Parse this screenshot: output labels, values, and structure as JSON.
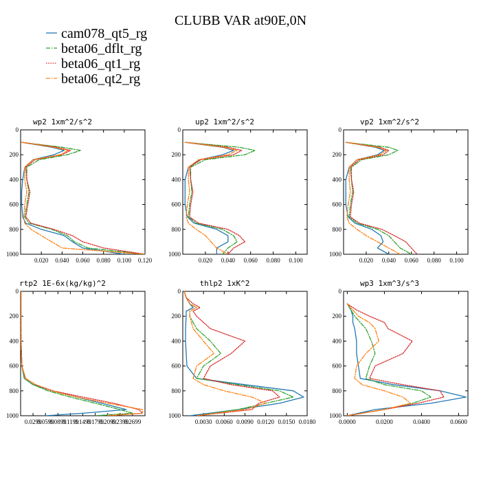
{
  "figure": {
    "title": "CLUBB VAR at90E,0N",
    "legend": [
      {
        "name": "cam078_qt5_rg",
        "color": "#1f77b4",
        "dash": "solid"
      },
      {
        "name": "beta06_dflt_rg",
        "color": "#2ca02c",
        "dash": "dashdot"
      },
      {
        "name": "beta06_qt1_rg",
        "color": "#d62728",
        "dash": "dotted"
      },
      {
        "name": "beta06_qt2_rg",
        "color": "#ff7f0e",
        "dash": "dashdot"
      }
    ]
  },
  "chart_data": [
    {
      "type": "line",
      "title": "wp2  1xm^2/s^2",
      "xlim": [
        0,
        0.12
      ],
      "ylim": [
        1000,
        0
      ],
      "y_inverted": true,
      "xticks": [
        0.02,
        0.04,
        0.06,
        0.08,
        0.1,
        0.12
      ],
      "xtick_labels": [
        "0.020",
        "0.040",
        "0.060",
        "0.080",
        "0.100",
        "0.120"
      ],
      "yticks": [
        0,
        200,
        400,
        600,
        800,
        1000
      ],
      "ytick_labels": [
        "0",
        "200",
        "400",
        "600",
        "800",
        "1000"
      ],
      "y": [
        100,
        140,
        165,
        200,
        240,
        300,
        400,
        500,
        600,
        700,
        750,
        800,
        850,
        900,
        950,
        1000
      ],
      "series": [
        {
          "name": "cam078_qt5_rg",
          "values": [
            0.001,
            0.03,
            0.042,
            0.032,
            0.012,
            0.004,
            0.002,
            0.001,
            0.001,
            0.002,
            0.005,
            0.02,
            0.042,
            0.05,
            0.06,
            0.1
          ]
        },
        {
          "name": "beta06_dflt_rg",
          "values": [
            0.001,
            0.04,
            0.058,
            0.045,
            0.018,
            0.006,
            0.006,
            0.008,
            0.006,
            0.004,
            0.008,
            0.03,
            0.045,
            0.052,
            0.065,
            0.12
          ]
        },
        {
          "name": "beta06_qt1_rg",
          "values": [
            0.001,
            0.035,
            0.048,
            0.04,
            0.014,
            0.005,
            0.006,
            0.009,
            0.007,
            0.005,
            0.01,
            0.032,
            0.05,
            0.06,
            0.08,
            0.12
          ]
        },
        {
          "name": "beta06_qt2_rg",
          "values": [
            0.001,
            0.032,
            0.046,
            0.038,
            0.012,
            0.004,
            0.004,
            0.006,
            0.004,
            0.003,
            0.004,
            0.01,
            0.02,
            0.03,
            0.04,
            0.12
          ]
        }
      ]
    },
    {
      "type": "line",
      "title": "up2  1xm^2/s^2",
      "xlim": [
        0,
        0.11
      ],
      "ylim": [
        1000,
        0
      ],
      "y_inverted": true,
      "xticks": [
        0.02,
        0.04,
        0.06,
        0.08,
        0.1
      ],
      "xtick_labels": [
        "0.020",
        "0.040",
        "0.060",
        "0.080",
        "0.100"
      ],
      "yticks": [
        0,
        200,
        400,
        600,
        800,
        1000
      ],
      "ytick_labels": [
        "0",
        "200",
        "400",
        "600",
        "800",
        "1000"
      ],
      "y": [
        100,
        140,
        165,
        200,
        240,
        300,
        400,
        500,
        600,
        700,
        750,
        800,
        850,
        900,
        950,
        1000
      ],
      "series": [
        {
          "name": "cam078_qt5_rg",
          "values": [
            0.002,
            0.035,
            0.045,
            0.035,
            0.015,
            0.005,
            0.002,
            0.002,
            0.002,
            0.004,
            0.01,
            0.03,
            0.04,
            0.04,
            0.03,
            0.03
          ]
        },
        {
          "name": "beta06_dflt_rg",
          "values": [
            0.002,
            0.05,
            0.064,
            0.055,
            0.02,
            0.007,
            0.007,
            0.008,
            0.006,
            0.005,
            0.012,
            0.035,
            0.045,
            0.048,
            0.04,
            0.035
          ]
        },
        {
          "name": "beta06_qt1_rg",
          "values": [
            0.002,
            0.04,
            0.052,
            0.045,
            0.016,
            0.006,
            0.007,
            0.009,
            0.007,
            0.006,
            0.014,
            0.04,
            0.05,
            0.055,
            0.045,
            0.04
          ]
        },
        {
          "name": "beta06_qt2_rg",
          "values": [
            0.002,
            0.036,
            0.048,
            0.04,
            0.014,
            0.005,
            0.005,
            0.006,
            0.004,
            0.003,
            0.005,
            0.012,
            0.02,
            0.025,
            0.03,
            0.04
          ]
        }
      ]
    },
    {
      "type": "line",
      "title": "vp2  1xm^2/s^2",
      "xlim": [
        0,
        0.11
      ],
      "ylim": [
        1000,
        0
      ],
      "y_inverted": true,
      "xticks": [
        0.02,
        0.04,
        0.06,
        0.08,
        0.1
      ],
      "xtick_labels": [
        "0.020",
        "0.040",
        "0.060",
        "0.080",
        "0.100"
      ],
      "yticks": [
        0,
        200,
        400,
        600,
        800,
        1000
      ],
      "ytick_labels": [
        "0",
        "200",
        "400",
        "600",
        "800",
        "1000"
      ],
      "y": [
        100,
        140,
        165,
        200,
        240,
        300,
        400,
        500,
        600,
        700,
        750,
        800,
        850,
        900,
        950,
        1000
      ],
      "series": [
        {
          "name": "cam078_qt5_rg",
          "values": [
            0.002,
            0.028,
            0.036,
            0.03,
            0.012,
            0.005,
            0.002,
            0.002,
            0.002,
            0.004,
            0.01,
            0.025,
            0.033,
            0.035,
            0.03,
            0.04
          ]
        },
        {
          "name": "beta06_dflt_rg",
          "values": [
            0.002,
            0.04,
            0.048,
            0.04,
            0.016,
            0.007,
            0.007,
            0.008,
            0.006,
            0.005,
            0.012,
            0.03,
            0.04,
            0.045,
            0.05,
            0.06
          ]
        },
        {
          "name": "beta06_qt1_rg",
          "values": [
            0.002,
            0.032,
            0.04,
            0.035,
            0.014,
            0.006,
            0.007,
            0.009,
            0.007,
            0.006,
            0.014,
            0.034,
            0.045,
            0.055,
            0.06,
            0.065
          ]
        },
        {
          "name": "beta06_qt2_rg",
          "values": [
            0.002,
            0.03,
            0.038,
            0.032,
            0.012,
            0.005,
            0.005,
            0.006,
            0.004,
            0.003,
            0.005,
            0.012,
            0.02,
            0.03,
            0.04,
            0.05
          ]
        }
      ]
    },
    {
      "type": "line",
      "title": "rtp2  1E-6x(kg/kg)^2",
      "xlim": [
        0,
        1
      ],
      "ylim": [
        1000,
        0
      ],
      "y_inverted": true,
      "xticks": [
        0.1,
        0.2,
        0.3,
        0.4,
        0.5,
        0.6,
        0.7,
        0.8,
        0.9
      ],
      "xtick_labels": [
        "0.0299",
        "0.0599",
        "0.0899",
        "0.1199",
        "0.1499",
        "0.1799",
        "0.2099",
        "0.2399",
        "0.2699"
      ],
      "yticks": [
        0,
        200,
        400,
        600,
        800,
        1000
      ],
      "ytick_labels": [
        "0",
        "200",
        "400",
        "600",
        "800",
        "1000"
      ],
      "y": [
        0,
        200,
        400,
        600,
        700,
        750,
        800,
        850,
        900,
        950,
        980,
        1000
      ],
      "series": [
        {
          "name": "cam078_qt5_rg",
          "values": [
            0.003,
            0.003,
            0.004,
            0.01,
            0.03,
            0.1,
            0.25,
            0.45,
            0.65,
            0.85,
            0.5,
            0.2
          ]
        },
        {
          "name": "beta06_dflt_rg",
          "values": [
            0.003,
            0.003,
            0.004,
            0.01,
            0.03,
            0.1,
            0.22,
            0.4,
            0.6,
            0.8,
            0.9,
            0.6
          ]
        },
        {
          "name": "beta06_qt1_rg",
          "values": [
            0.003,
            0.003,
            0.004,
            0.01,
            0.04,
            0.12,
            0.26,
            0.5,
            0.75,
            0.95,
            0.98,
            0.7
          ]
        },
        {
          "name": "beta06_qt2_rg",
          "values": [
            0.003,
            0.003,
            0.004,
            0.01,
            0.04,
            0.12,
            0.25,
            0.45,
            0.7,
            0.98,
            0.98,
            0.7
          ]
        }
      ]
    },
    {
      "type": "line",
      "title": "thlp2  1xK^2",
      "xlim": [
        0,
        0.018
      ],
      "ylim": [
        1000,
        0
      ],
      "y_inverted": true,
      "xticks": [
        0.003,
        0.006,
        0.009,
        0.012,
        0.015,
        0.018
      ],
      "xtick_labels": [
        "0.0030",
        "0.0060",
        "0.0090",
        "0.0120",
        "0.0150",
        "0.0180"
      ],
      "yticks": [
        0,
        200,
        400,
        600,
        800,
        1000
      ],
      "ytick_labels": [
        "0",
        "200",
        "400",
        "600",
        "800",
        "1000"
      ],
      "y": [
        0,
        50,
        100,
        130,
        160,
        200,
        300,
        400,
        500,
        600,
        700,
        750,
        800,
        850,
        900,
        950,
        1000
      ],
      "series": [
        {
          "name": "cam078_qt5_rg",
          "values": [
            0.0002,
            0.0005,
            0.001,
            0.0015,
            0.0005,
            0.0005,
            0.0004,
            0.0004,
            0.0005,
            0.0006,
            0.002,
            0.009,
            0.016,
            0.0175,
            0.014,
            0.008,
            0.001
          ]
        },
        {
          "name": "beta06_dflt_rg",
          "values": [
            0.0002,
            0.0005,
            0.001,
            0.002,
            0.001,
            0.001,
            0.002,
            0.004,
            0.0055,
            0.003,
            0.002,
            0.008,
            0.014,
            0.016,
            0.012,
            0.008,
            0.002
          ]
        },
        {
          "name": "beta06_qt1_rg",
          "values": [
            0.0002,
            0.0005,
            0.0015,
            0.0025,
            0.0015,
            0.002,
            0.004,
            0.009,
            0.007,
            0.004,
            0.003,
            0.007,
            0.013,
            0.014,
            0.011,
            0.01,
            0.002
          ]
        },
        {
          "name": "beta06_qt2_rg",
          "values": [
            0.0002,
            0.0005,
            0.001,
            0.002,
            0.001,
            0.001,
            0.0015,
            0.003,
            0.0045,
            0.002,
            0.0015,
            0.003,
            0.006,
            0.01,
            0.012,
            0.009,
            0.002
          ]
        }
      ]
    },
    {
      "type": "line",
      "title": "wp3  1xm^3/s^3",
      "xlim": [
        -0.002,
        0.065
      ],
      "ylim": [
        1000,
        0
      ],
      "y_inverted": true,
      "xticks": [
        0,
        0.02,
        0.04,
        0.06
      ],
      "xtick_labels": [
        "0.0000",
        "0.0200",
        "0.0400",
        "0.0600"
      ],
      "yticks": [
        0,
        200,
        400,
        600,
        800,
        1000
      ],
      "ytick_labels": [
        "0",
        "200",
        "400",
        "600",
        "800",
        "1000"
      ],
      "y": [
        100,
        150,
        200,
        250,
        300,
        400,
        500,
        600,
        700,
        750,
        800,
        850,
        900,
        950,
        1000
      ],
      "series": [
        {
          "name": "cam078_qt5_rg",
          "values": [
            0,
            0.002,
            0.003,
            0.003,
            0.004,
            0.005,
            0.005,
            0.006,
            0.007,
            0.025,
            0.05,
            0.064,
            0.045,
            0.015,
            0
          ]
        },
        {
          "name": "beta06_dflt_rg",
          "values": [
            0,
            0.002,
            0.004,
            0.007,
            0.01,
            0.013,
            0.015,
            0.012,
            0.01,
            0.02,
            0.04,
            0.045,
            0.035,
            0.02,
            0
          ]
        },
        {
          "name": "beta06_qt1_rg",
          "values": [
            0,
            0.005,
            0.012,
            0.02,
            0.022,
            0.035,
            0.03,
            0.015,
            0.012,
            0.03,
            0.05,
            0.052,
            0.038,
            0.02,
            0
          ]
        },
        {
          "name": "beta06_qt2_rg",
          "values": [
            0,
            0.003,
            0.006,
            0.012,
            0.015,
            0.017,
            0.01,
            0.005,
            0.004,
            0.008,
            0.02,
            0.03,
            0.034,
            0.02,
            0
          ]
        }
      ]
    }
  ]
}
